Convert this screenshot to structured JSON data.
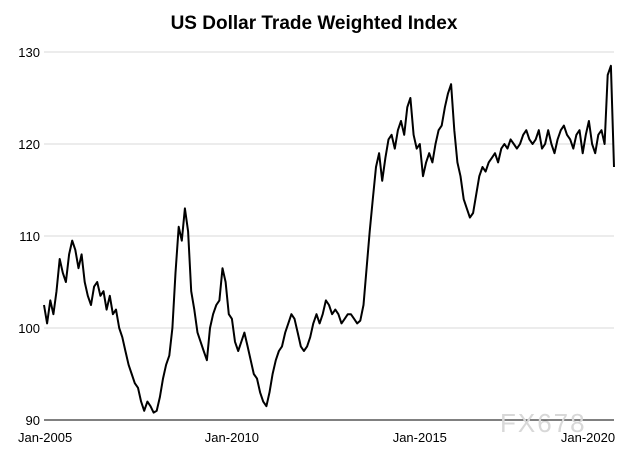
{
  "chart_data": {
    "type": "line",
    "title": "US Dollar Trade Weighted Index",
    "xlabel": "",
    "ylabel": "",
    "ylim": [
      90,
      130
    ],
    "yticks": [
      "130",
      "120",
      "110",
      "100",
      "90"
    ],
    "xlim": [
      "2005-01",
      "2020-03"
    ],
    "xticks": [
      {
        "label": "Jan-2005",
        "date": "2005-01"
      },
      {
        "label": "Jan-2010",
        "date": "2010-01"
      },
      {
        "label": "Jan-2015",
        "date": "2015-01"
      },
      {
        "label": "Jan-2020",
        "date": "2020-01"
      }
    ],
    "grid": "horizontal",
    "line_color": "#000000",
    "series": [
      {
        "x": [
          "2005-01",
          "2005-02",
          "2005-03",
          "2005-04",
          "2005-05",
          "2005-06",
          "2005-07",
          "2005-08",
          "2005-09",
          "2005-10",
          "2005-11",
          "2005-12",
          "2006-01",
          "2006-02",
          "2006-03",
          "2006-04",
          "2006-05",
          "2006-06",
          "2006-07",
          "2006-08",
          "2006-09",
          "2006-10",
          "2006-11",
          "2006-12",
          "2007-01",
          "2007-02",
          "2007-03",
          "2007-04",
          "2007-05",
          "2007-06",
          "2007-07",
          "2007-08",
          "2007-09",
          "2007-10",
          "2007-11",
          "2007-12",
          "2008-01",
          "2008-02",
          "2008-03",
          "2008-04",
          "2008-05",
          "2008-06",
          "2008-07",
          "2008-08",
          "2008-09",
          "2008-10",
          "2008-11",
          "2008-12",
          "2009-01",
          "2009-02",
          "2009-03",
          "2009-04",
          "2009-05",
          "2009-06",
          "2009-07",
          "2009-08",
          "2009-09",
          "2009-10",
          "2009-11",
          "2009-12",
          "2010-01",
          "2010-02",
          "2010-03",
          "2010-04",
          "2010-05",
          "2010-06",
          "2010-07",
          "2010-08",
          "2010-09",
          "2010-10",
          "2010-11",
          "2010-12",
          "2011-01",
          "2011-02",
          "2011-03",
          "2011-04",
          "2011-05",
          "2011-06",
          "2011-07",
          "2011-08",
          "2011-09",
          "2011-10",
          "2011-11",
          "2011-12",
          "2012-01",
          "2012-02",
          "2012-03",
          "2012-04",
          "2012-05",
          "2012-06",
          "2012-07",
          "2012-08",
          "2012-09",
          "2012-10",
          "2012-11",
          "2012-12",
          "2013-01",
          "2013-02",
          "2013-03",
          "2013-04",
          "2013-05",
          "2013-06",
          "2013-07",
          "2013-08",
          "2013-09",
          "2013-10",
          "2013-11",
          "2013-12",
          "2014-01",
          "2014-02",
          "2014-03",
          "2014-04",
          "2014-05",
          "2014-06",
          "2014-07",
          "2014-08",
          "2014-09",
          "2014-10",
          "2014-11",
          "2014-12",
          "2015-01",
          "2015-02",
          "2015-03",
          "2015-04",
          "2015-05",
          "2015-06",
          "2015-07",
          "2015-08",
          "2015-09",
          "2015-10",
          "2015-11",
          "2015-12",
          "2016-01",
          "2016-02",
          "2016-03",
          "2016-04",
          "2016-05",
          "2016-06",
          "2016-07",
          "2016-08",
          "2016-09",
          "2016-10",
          "2016-11",
          "2016-12",
          "2017-01",
          "2017-02",
          "2017-03",
          "2017-04",
          "2017-05",
          "2017-06",
          "2017-07",
          "2017-08",
          "2017-09",
          "2017-10",
          "2017-11",
          "2017-12",
          "2018-01",
          "2018-02",
          "2018-03",
          "2018-04",
          "2018-05",
          "2018-06",
          "2018-07",
          "2018-08",
          "2018-09",
          "2018-10",
          "2018-11",
          "2018-12",
          "2019-01",
          "2019-02",
          "2019-03",
          "2019-04",
          "2019-05",
          "2019-06",
          "2019-07",
          "2019-08",
          "2019-09",
          "2019-10",
          "2019-11",
          "2019-12",
          "2020-01",
          "2020-02",
          "2020-03"
        ],
        "values": [
          102.5,
          100.5,
          103.0,
          101.5,
          104.0,
          107.5,
          106.0,
          105.0,
          108.0,
          109.5,
          108.5,
          106.5,
          108.0,
          105.0,
          103.5,
          102.5,
          104.5,
          105.0,
          103.5,
          104.0,
          102.0,
          103.5,
          101.5,
          102.0,
          100.0,
          99.0,
          97.5,
          96.0,
          95.0,
          94.0,
          93.5,
          92.0,
          91.0,
          92.0,
          91.5,
          90.8,
          91.0,
          92.5,
          94.5,
          96.0,
          97.0,
          100.0,
          106.0,
          111.0,
          109.5,
          113.0,
          110.5,
          104.0,
          102.0,
          99.5,
          98.5,
          97.5,
          96.5,
          100.0,
          101.5,
          102.5,
          103.0,
          106.5,
          105.0,
          101.5,
          101.0,
          98.5,
          97.5,
          98.5,
          99.5,
          98.0,
          96.5,
          95.0,
          94.5,
          93.0,
          92.0,
          91.5,
          93.0,
          95.0,
          96.5,
          97.5,
          98.0,
          99.5,
          100.5,
          101.5,
          101.0,
          99.5,
          98.0,
          97.5,
          98.0,
          99.0,
          100.5,
          101.5,
          100.5,
          101.5,
          103.0,
          102.5,
          101.5,
          102.0,
          101.5,
          100.5,
          101.0,
          101.5,
          101.5,
          101.0,
          100.5,
          100.8,
          102.5,
          106.5,
          110.5,
          114.0,
          117.5,
          119.0,
          116.0,
          118.5,
          120.5,
          121.0,
          119.5,
          121.5,
          122.5,
          121.0,
          124.0,
          125.0,
          121.0,
          119.5,
          120.0,
          116.5,
          118.0,
          119.0,
          118.0,
          120.0,
          121.5,
          122.0,
          124.0,
          125.5,
          126.5,
          121.5,
          118.0,
          116.5,
          114.0,
          113.0,
          112.0,
          112.5,
          114.5,
          116.5,
          117.5,
          117.0,
          118.0,
          118.5,
          119.0,
          118.0,
          119.5,
          120.0,
          119.5,
          120.5,
          120.0,
          119.5,
          120.0,
          121.0,
          121.5,
          120.5,
          120.0,
          120.5,
          121.5,
          119.5,
          120.0,
          121.5,
          120.0,
          119.0,
          120.5,
          121.5,
          122.0,
          121.0,
          120.5,
          119.5,
          121.0,
          121.5,
          119.0,
          121.0,
          122.5,
          120.0,
          119.0,
          121.0,
          121.5,
          120.0,
          127.5,
          128.5,
          117.5
        ]
      }
    ],
    "watermark": "FX678"
  }
}
